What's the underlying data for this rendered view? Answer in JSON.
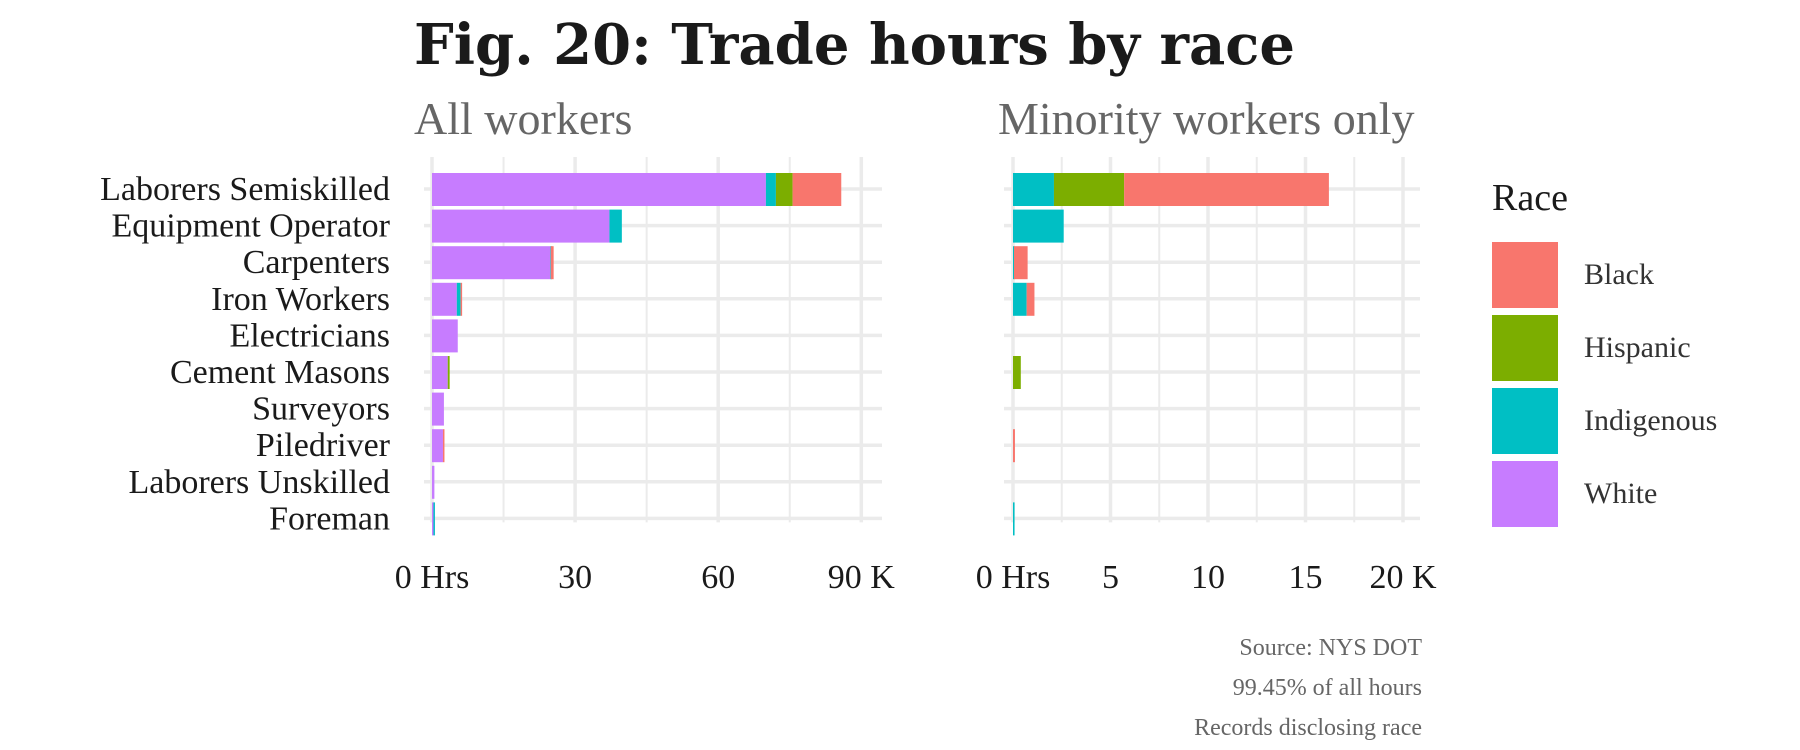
{
  "title": "Fig. 20: Trade hours by race",
  "caption": [
    "Source: NYS DOT",
    "99.45% of all hours",
    "Records disclosing race"
  ],
  "legend": {
    "title": "Race"
  },
  "colors": {
    "Black": "#F8766D",
    "Hispanic": "#7CAE00",
    "Indigenous": "#00BFC4",
    "White": "#C77CFF",
    "grid": "#ebebeb"
  },
  "chart_data": [
    {
      "type": "bar",
      "orientation": "horizontal",
      "stacked": true,
      "subtitle": "All workers",
      "categories": [
        "Laborers Semiskilled",
        "Equipment Operator",
        "Carpenters",
        "Iron Workers",
        "Electricians",
        "Cement Masons",
        "Surveyors",
        "Piledriver",
        "Laborers Unskilled",
        "Foreman"
      ],
      "series": [
        {
          "name": "White",
          "values": [
            70,
            37.2,
            24.8,
            5.2,
            5.4,
            3.3,
            2.5,
            2.3,
            0.5,
            0.3
          ]
        },
        {
          "name": "Indigenous",
          "values": [
            2.1,
            2.6,
            0.1,
            0.8,
            0,
            0,
            0,
            0,
            0,
            0.1
          ]
        },
        {
          "name": "Hispanic",
          "values": [
            3.5,
            0,
            0,
            0,
            0,
            0.4,
            0,
            0,
            0,
            0
          ]
        },
        {
          "name": "Black",
          "values": [
            10.2,
            0,
            0.6,
            0.3,
            0,
            0,
            0,
            0.1,
            0,
            0
          ]
        }
      ],
      "xlim": [
        0,
        90
      ],
      "ticks": [
        0,
        30,
        60,
        90
      ],
      "tick_labels": [
        "0 Hrs",
        "30",
        "60",
        "90 K"
      ]
    },
    {
      "type": "bar",
      "orientation": "horizontal",
      "stacked": true,
      "subtitle": "Minority workers only",
      "categories": [
        "Laborers Semiskilled",
        "Equipment Operator",
        "Carpenters",
        "Iron Workers",
        "Electricians",
        "Cement Masons",
        "Surveyors",
        "Piledriver",
        "Laborers Unskilled",
        "Foreman"
      ],
      "series": [
        {
          "name": "Indigenous",
          "values": [
            2.1,
            2.6,
            0.05,
            0.7,
            0,
            0,
            0,
            0,
            0,
            0.08
          ]
        },
        {
          "name": "Hispanic",
          "values": [
            3.6,
            0,
            0,
            0,
            0,
            0.4,
            0,
            0,
            0,
            0
          ]
        },
        {
          "name": "Black",
          "values": [
            10.5,
            0,
            0.7,
            0.4,
            0,
            0,
            0,
            0.1,
            0,
            0
          ]
        }
      ],
      "xlim": [
        0,
        20
      ],
      "ticks": [
        0,
        5,
        10,
        15,
        20
      ],
      "tick_labels": [
        "0 Hrs",
        "5",
        "10",
        "15",
        "20 K"
      ]
    }
  ]
}
